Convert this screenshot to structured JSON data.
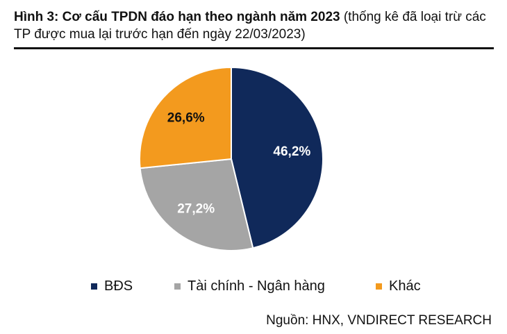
{
  "figure": {
    "title_bold": "Hình 3: Cơ cấu TPDN đáo hạn theo ngành năm 2023",
    "title_rest": " (thống kê đã loại trừ các TP được mua lại trước hạn đến ngày 22/03/2023)",
    "source": "Nguồn: HNX, VNDIRECT RESEARCH"
  },
  "chart_data": {
    "type": "pie",
    "title": "",
    "categories": [
      "BĐS",
      "Tài chính - Ngân hàng",
      "Khác"
    ],
    "values": [
      46.2,
      27.2,
      26.6
    ],
    "labels": [
      "46,2%",
      "27,2%",
      "26,6%"
    ],
    "colors": [
      "#10295a",
      "#a5a5a5",
      "#f39a1e"
    ],
    "label_colors": [
      "#ffffff",
      "#ffffff",
      "#111111"
    ],
    "start_angle": "12 o'clock",
    "direction": "clockwise",
    "legend_position": "bottom"
  }
}
